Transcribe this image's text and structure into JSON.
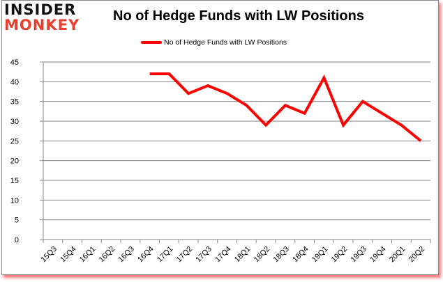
{
  "brand": {
    "line1": "INSIDER",
    "line2": "MONKEY",
    "colors": {
      "line1": "#111111",
      "line2": "#e8402f"
    }
  },
  "chart": {
    "title": "No of Hedge Funds with LW Positions",
    "legend_label": "No of Hedge Funds with LW Positions",
    "line_color": "#ff0000"
  },
  "chart_data": {
    "type": "line",
    "title": "No of Hedge Funds with LW Positions",
    "xlabel": "",
    "ylabel": "",
    "ylim": [
      0,
      45
    ],
    "yticks": [
      0,
      5,
      10,
      15,
      20,
      25,
      30,
      35,
      40,
      45
    ],
    "grid": true,
    "legend_position": "top",
    "categories": [
      "15Q3",
      "15Q4",
      "16Q1",
      "16Q2",
      "16Q3",
      "16Q4",
      "17Q1",
      "17Q2",
      "17Q3",
      "17Q4",
      "18Q1",
      "18Q2",
      "18Q3",
      "18Q4",
      "19Q1",
      "19Q2",
      "19Q3",
      "19Q4",
      "20Q1",
      "20Q2"
    ],
    "series": [
      {
        "name": "No of Hedge Funds with LW Positions",
        "color": "#ff0000",
        "values": [
          null,
          null,
          null,
          null,
          null,
          42,
          42,
          37,
          39,
          37,
          34,
          29,
          34,
          32,
          41,
          29,
          35,
          32,
          29,
          25
        ]
      }
    ]
  }
}
